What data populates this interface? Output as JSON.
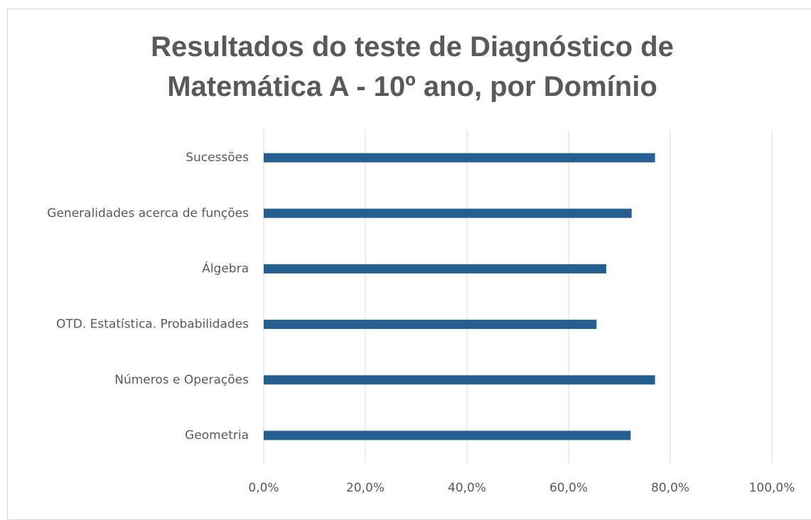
{
  "chart_data": {
    "type": "bar",
    "orientation": "horizontal",
    "title": "Resultados do teste de Diagnóstico de Matemática A - 10º ano, por Domínio",
    "categories": [
      "Sucessões",
      "Generalidades acerca de funções",
      "Álgebra",
      "OTD. Estatística. Probabilidades",
      "Números e Operações",
      "Geometria"
    ],
    "values": [
      77.0,
      72.4,
      67.4,
      65.5,
      77.0,
      72.2
    ],
    "color": "#255e91",
    "xlim": [
      0,
      100
    ],
    "xticks": [
      {
        "value": 0,
        "label": "0,0%"
      },
      {
        "value": 20,
        "label": "20,0%"
      },
      {
        "value": 40,
        "label": "40,0%"
      },
      {
        "value": 60,
        "label": "60,0%"
      },
      {
        "value": 80,
        "label": "80,0%"
      },
      {
        "value": 100,
        "label": "100,0%"
      }
    ],
    "grid": true
  }
}
